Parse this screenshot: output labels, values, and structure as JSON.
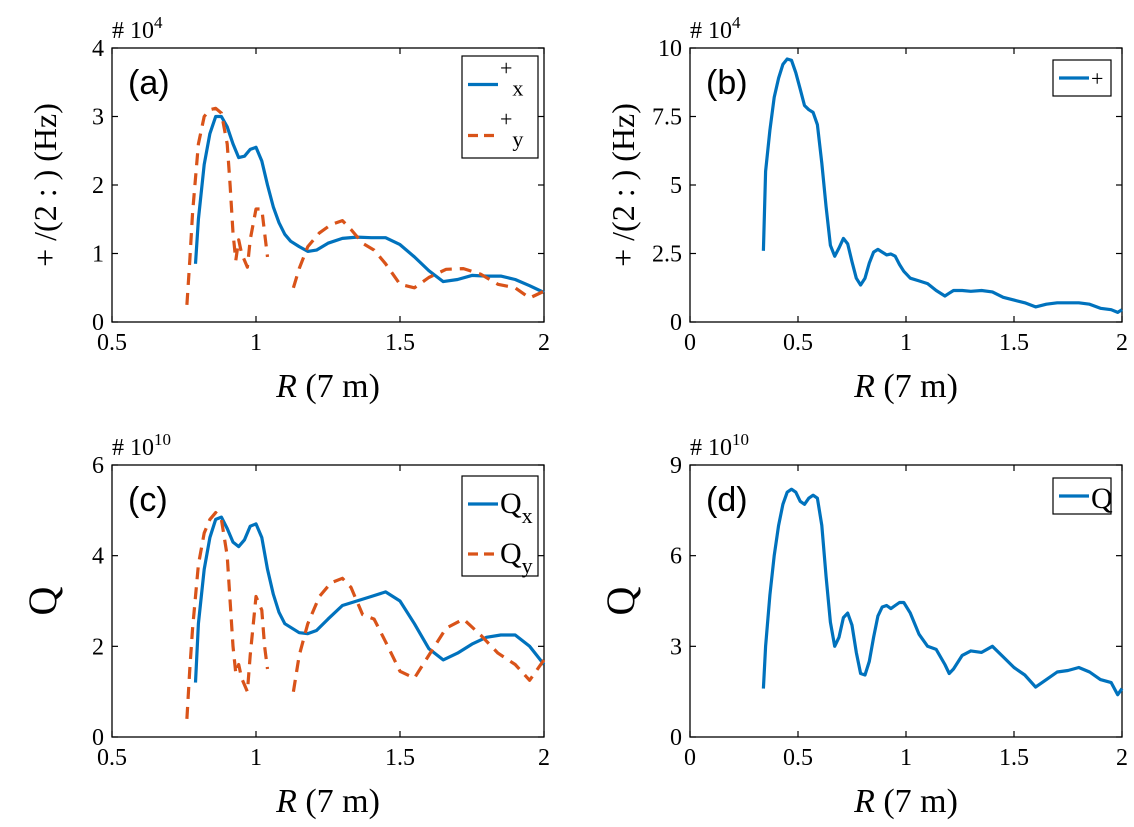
{
  "figure": {
    "background": "#ffffff",
    "series_colors": [
      "#0072BD",
      "#D95319"
    ]
  },
  "chart_data": [
    {
      "id": "a",
      "type": "line",
      "panel_label": "(a)",
      "exponent_label": "# 10",
      "exponent_power": "4",
      "ylabel": "+ /(2 : ) (Hz)",
      "xlabel_italic": "R",
      "xlabel_rest": " (7 m)",
      "xlim": [
        0.5,
        2
      ],
      "ylim": [
        0,
        40000
      ],
      "xticks": [
        0.5,
        1,
        1.5,
        2
      ],
      "xtick_labels": [
        "0.5",
        "1",
        "1.5",
        "2"
      ],
      "yticks": [
        0,
        10000,
        20000,
        30000,
        40000
      ],
      "ytick_labels": [
        "0",
        "1",
        "2",
        "3",
        "4"
      ],
      "grid": false,
      "legend_position": "top-right",
      "series": [
        {
          "name": "+x",
          "legend_main": "+",
          "legend_sub": "x",
          "color": "#0072BD",
          "dash": "solid",
          "x": [
            0.79,
            0.8,
            0.82,
            0.84,
            0.86,
            0.88,
            0.9,
            0.92,
            0.94,
            0.96,
            0.98,
            1.0,
            1.02,
            1.04,
            1.06,
            1.08,
            1.1,
            1.12,
            1.15,
            1.18,
            1.21,
            1.25,
            1.3,
            1.35,
            1.4,
            1.45,
            1.5,
            1.55,
            1.6,
            1.65,
            1.7,
            1.75,
            1.8,
            1.85,
            1.9,
            1.95,
            2.0
          ],
          "y": [
            8500,
            15000,
            23000,
            27500,
            30000,
            30000,
            28500,
            26000,
            24000,
            24200,
            25200,
            25500,
            23500,
            20000,
            16800,
            14500,
            12800,
            11800,
            11000,
            10300,
            10500,
            11500,
            12200,
            12400,
            12300,
            12300,
            11300,
            9500,
            7500,
            5900,
            6200,
            6800,
            6700,
            6700,
            6200,
            5300,
            4300
          ]
        },
        {
          "name": "+y",
          "legend_main": "+",
          "legend_sub": "y",
          "color": "#D95319",
          "dash": "dashed",
          "x": [
            0.76,
            0.77,
            0.78,
            0.8,
            0.82,
            0.84,
            0.86,
            0.88,
            0.9,
            0.91,
            0.92,
            0.93,
            0.94,
            0.95,
            0.97,
            0.98,
            1.0,
            1.02,
            1.03,
            1.04
          ],
          "y": [
            2500,
            9000,
            16000,
            26000,
            30000,
            31000,
            31200,
            30500,
            26000,
            20000,
            13000,
            9000,
            12000,
            10000,
            8000,
            12000,
            16500,
            16500,
            13000,
            9500
          ],
          "x2": [
            1.13,
            1.15,
            1.18,
            1.22,
            1.26,
            1.3,
            1.33,
            1.37,
            1.41,
            1.45,
            1.5,
            1.55,
            1.6,
            1.66,
            1.72,
            1.78,
            1.84,
            1.9,
            1.95,
            2.0
          ],
          "y2": [
            5000,
            7800,
            11000,
            13000,
            14200,
            14800,
            13500,
            11500,
            10500,
            8500,
            5500,
            5000,
            6500,
            7700,
            7800,
            7000,
            5500,
            5000,
            3500,
            4500
          ]
        }
      ]
    },
    {
      "id": "b",
      "type": "line",
      "panel_label": "(b)",
      "exponent_label": "# 10",
      "exponent_power": "4",
      "ylabel": "+ /(2 : ) (Hz)",
      "xlabel_italic": "R",
      "xlabel_rest": " (7 m)",
      "xlim": [
        0,
        2
      ],
      "ylim": [
        0,
        100000
      ],
      "xticks": [
        0,
        0.5,
        1,
        1.5,
        2
      ],
      "xtick_labels": [
        "0",
        "0.5",
        "1",
        "1.5",
        "2"
      ],
      "yticks": [
        0,
        25000,
        50000,
        75000,
        100000
      ],
      "ytick_labels": [
        "0",
        "2.5",
        "5",
        "7.5",
        "10"
      ],
      "grid": false,
      "legend_position": "top-right",
      "series": [
        {
          "name": "+",
          "legend_main": "+",
          "legend_sub": "",
          "color": "#0072BD",
          "dash": "solid",
          "x": [
            0.34,
            0.35,
            0.37,
            0.39,
            0.41,
            0.43,
            0.45,
            0.47,
            0.49,
            0.51,
            0.53,
            0.55,
            0.57,
            0.59,
            0.61,
            0.63,
            0.65,
            0.67,
            0.69,
            0.71,
            0.73,
            0.75,
            0.77,
            0.79,
            0.81,
            0.83,
            0.85,
            0.87,
            0.89,
            0.91,
            0.93,
            0.95,
            0.97,
            0.99,
            1.02,
            1.06,
            1.1,
            1.14,
            1.18,
            1.2,
            1.22,
            1.26,
            1.3,
            1.35,
            1.4,
            1.45,
            1.5,
            1.55,
            1.6,
            1.65,
            1.7,
            1.75,
            1.8,
            1.85,
            1.9,
            1.95,
            1.98,
            2.0
          ],
          "y": [
            26000,
            55000,
            70000,
            82000,
            89000,
            94000,
            96000,
            95500,
            91000,
            85000,
            79000,
            77500,
            76500,
            72000,
            58000,
            42000,
            28000,
            24000,
            27000,
            30500,
            28500,
            22000,
            16000,
            13500,
            16000,
            21500,
            25500,
            26500,
            25500,
            24500,
            24800,
            24000,
            21000,
            18500,
            16000,
            15000,
            14000,
            11500,
            9500,
            10500,
            11500,
            11500,
            11200,
            11500,
            11000,
            9000,
            8000,
            7000,
            5500,
            6500,
            7000,
            7000,
            7000,
            6500,
            5000,
            4500,
            3500,
            4500
          ]
        }
      ]
    },
    {
      "id": "c",
      "type": "line",
      "panel_label": "(c)",
      "exponent_label": "# 10",
      "exponent_power": "10",
      "ylabel": "Q",
      "xlabel_italic": "R",
      "xlabel_rest": " (7 m)",
      "xlim": [
        0.5,
        2
      ],
      "ylim": [
        0,
        60000000000
      ],
      "xticks": [
        0.5,
        1,
        1.5,
        2
      ],
      "xtick_labels": [
        "0.5",
        "1",
        "1.5",
        "2"
      ],
      "yticks": [
        0,
        20000000000,
        40000000000,
        60000000000
      ],
      "ytick_labels": [
        "0",
        "2",
        "4",
        "6"
      ],
      "grid": false,
      "legend_position": "top-right",
      "series": [
        {
          "name": "Qx",
          "legend_main": "Q",
          "legend_sub": "x",
          "color": "#0072BD",
          "dash": "solid",
          "x": [
            0.79,
            0.8,
            0.82,
            0.84,
            0.86,
            0.88,
            0.9,
            0.92,
            0.94,
            0.96,
            0.98,
            1.0,
            1.02,
            1.04,
            1.06,
            1.08,
            1.1,
            1.12,
            1.15,
            1.18,
            1.21,
            1.25,
            1.3,
            1.35,
            1.4,
            1.45,
            1.5,
            1.55,
            1.6,
            1.65,
            1.7,
            1.75,
            1.8,
            1.85,
            1.9,
            1.95,
            2.0
          ],
          "y": [
            12000000000,
            25000000000,
            37000000000,
            44000000000,
            48000000000,
            48500000000,
            46000000000,
            43000000000,
            42000000000,
            43500000000,
            46500000000,
            47000000000,
            44000000000,
            37000000000,
            31500000000,
            27500000000,
            25000000000,
            24200000000,
            23000000000,
            22800000000,
            23500000000,
            26000000000,
            29000000000,
            30000000000,
            31000000000,
            32000000000,
            30000000000,
            25000000000,
            19500000000,
            17000000000,
            18500000000,
            20500000000,
            22000000000,
            22500000000,
            22500000000,
            20000000000,
            16000000000
          ]
        },
        {
          "name": "Qy",
          "legend_main": "Q",
          "legend_sub": "y",
          "color": "#D95319",
          "dash": "dashed",
          "x": [
            0.76,
            0.77,
            0.78,
            0.8,
            0.82,
            0.84,
            0.86,
            0.88,
            0.9,
            0.91,
            0.92,
            0.93,
            0.94,
            0.95,
            0.97,
            0.98,
            1.0,
            1.02,
            1.03,
            1.04
          ],
          "y": [
            4000000000,
            15000000000,
            24000000000,
            38000000000,
            45000000000,
            48000000000,
            49500000000,
            48000000000,
            40000000000,
            30000000000,
            20000000000,
            14000000000,
            16000000000,
            13000000000,
            10000000000,
            18000000000,
            31000000000,
            28000000000,
            20000000000,
            15000000000
          ],
          "x2": [
            1.13,
            1.15,
            1.18,
            1.22,
            1.26,
            1.3,
            1.33,
            1.37,
            1.41,
            1.45,
            1.5,
            1.55,
            1.6,
            1.66,
            1.72,
            1.78,
            1.84,
            1.9,
            1.95,
            2.0
          ],
          "y2": [
            10000000000,
            18000000000,
            25000000000,
            31000000000,
            34000000000,
            35000000000,
            33000000000,
            27000000000,
            26000000000,
            21000000000,
            14500000000,
            13000000000,
            18000000000,
            24000000000,
            26000000000,
            22500000000,
            18500000000,
            16000000000,
            12500000000,
            17000000000
          ]
        }
      ]
    },
    {
      "id": "d",
      "type": "line",
      "panel_label": "(d)",
      "exponent_label": "# 10",
      "exponent_power": "10",
      "ylabel": "Q",
      "xlabel_italic": "R",
      "xlabel_rest": " (7 m)",
      "xlim": [
        0,
        2
      ],
      "ylim": [
        0,
        90000000000
      ],
      "xticks": [
        0,
        0.5,
        1,
        1.5,
        2
      ],
      "xtick_labels": [
        "0",
        "0.5",
        "1",
        "1.5",
        "2"
      ],
      "yticks": [
        0,
        30000000000,
        60000000000,
        90000000000
      ],
      "ytick_labels": [
        "0",
        "3",
        "6",
        "9"
      ],
      "grid": false,
      "legend_position": "top-right",
      "series": [
        {
          "name": "Q",
          "legend_main": "Q",
          "legend_sub": "",
          "color": "#0072BD",
          "dash": "solid",
          "x": [
            0.34,
            0.35,
            0.37,
            0.39,
            0.41,
            0.43,
            0.45,
            0.47,
            0.49,
            0.51,
            0.53,
            0.55,
            0.57,
            0.59,
            0.61,
            0.63,
            0.65,
            0.67,
            0.69,
            0.71,
            0.73,
            0.75,
            0.77,
            0.79,
            0.81,
            0.83,
            0.85,
            0.87,
            0.89,
            0.91,
            0.93,
            0.95,
            0.97,
            0.99,
            1.02,
            1.06,
            1.1,
            1.14,
            1.18,
            1.2,
            1.22,
            1.26,
            1.3,
            1.35,
            1.4,
            1.45,
            1.5,
            1.55,
            1.6,
            1.65,
            1.7,
            1.75,
            1.8,
            1.85,
            1.9,
            1.95,
            1.98,
            2.0
          ],
          "y": [
            16000000000,
            30000000000,
            47000000000,
            60000000000,
            70000000000,
            77000000000,
            81000000000,
            82000000000,
            81000000000,
            78000000000,
            77000000000,
            79000000000,
            80000000000,
            79000000000,
            70000000000,
            53000000000,
            38000000000,
            30000000000,
            33000000000,
            39500000000,
            41000000000,
            37000000000,
            28000000000,
            21000000000,
            20500000000,
            25000000000,
            33000000000,
            40000000000,
            43000000000,
            43500000000,
            42500000000,
            43500000000,
            44500000000,
            44500000000,
            41000000000,
            34000000000,
            30000000000,
            29000000000,
            24000000000,
            21000000000,
            22500000000,
            27000000000,
            28500000000,
            28000000000,
            30000000000,
            26500000000,
            23000000000,
            20500000000,
            16500000000,
            19000000000,
            21500000000,
            22000000000,
            23000000000,
            21500000000,
            19000000000,
            18000000000,
            14000000000,
            16000000000
          ]
        }
      ]
    }
  ]
}
